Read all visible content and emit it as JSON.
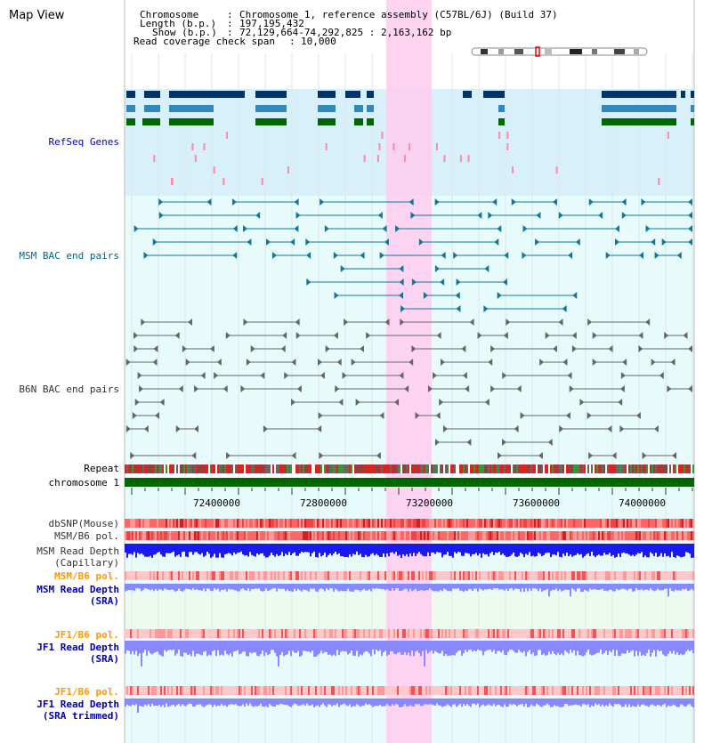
{
  "view_title": "Map View",
  "header": {
    "chromosome_key": "Chromosome",
    "chromosome_val": "Chromosome 1, reference assembly (C57BL/6J) (Build 37)",
    "length_key": "Length (b.p.)",
    "length_val": "197,195,432",
    "show_key": "Show (b.p.)",
    "show_val": "72,129,664-74,292,825 : 2,163,162 bp",
    "coverage_key": "Read coverage check span",
    "coverage_val": "10,000"
  },
  "tracks": {
    "refseq": "RefSeq Genes",
    "msm_bac": "MSM BAC end pairs",
    "b6n_bac": "B6N BAC end pairs",
    "repeat": "Repeat",
    "chromosome": "chromosome 1",
    "dbsnp": "dbSNP(Mouse)",
    "msm_b6_pol": "MSM/B6 pol.",
    "msm_read_cap_1": "MSM Read Depth",
    "msm_read_cap_2": "(Capillary)",
    "msm_b6_pol_2": "MSM/B6 pol.",
    "msm_read_sra_1": "MSM Read Depth",
    "msm_read_sra_2": "(SRA)",
    "jf1_b6_pol": "JF1/B6 pol.",
    "jf1_read_sra_1": "JF1 Read Depth",
    "jf1_read_sra_2": "(SRA)",
    "jf1_b6_pol_2": "JF1/B6 pol.",
    "jf1_read_trim_1": "JF1 Read Depth",
    "jf1_read_trim_2": "(SRA trimmed)"
  },
  "axis_ticks": [
    "72400000",
    "72800000",
    "73200000",
    "73600000",
    "74000000"
  ],
  "colors": {
    "refseq_label": "#0000cc",
    "msm_bac_label": "#006688",
    "b6n_bac_label": "#333333",
    "pol_label": "#ff9900",
    "read_label": "#0000aa",
    "highlight": "#ffccee",
    "gene_dark": "#003366",
    "gene_mid": "#3388bb",
    "gene_green": "#006600",
    "chrom_bar": "#006600",
    "refseq_bg": "#d8f0fa",
    "track_bg": "#e8fbfb",
    "depth_blue": "#1a1aee",
    "depth_light": "#8888ff"
  }
}
